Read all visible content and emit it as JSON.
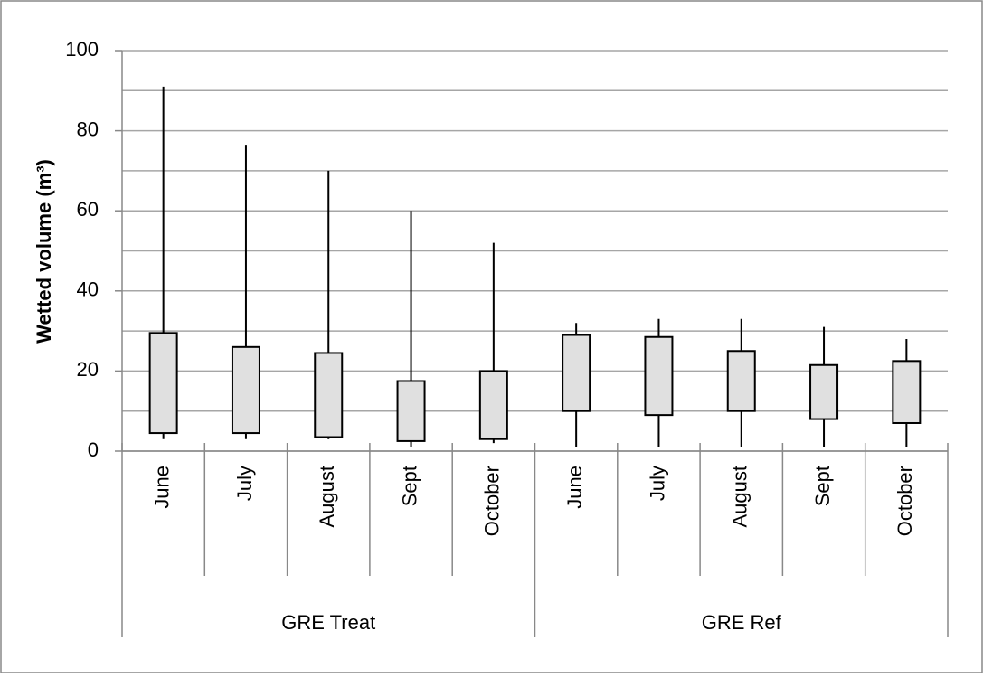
{
  "chart_data": {
    "type": "box",
    "y_label": "Wetted volume (m³)",
    "ylim": [
      0,
      100
    ],
    "yticks": [
      0,
      20,
      40,
      60,
      80,
      100
    ],
    "minor_grid": [
      10,
      30,
      50,
      70,
      90
    ],
    "grid": true,
    "color": "#e0e0e0",
    "groups": [
      {
        "name": "GRE Treat",
        "categories": [
          "June",
          "July",
          "August",
          "Sept",
          "October"
        ],
        "low": [
          3,
          3,
          3,
          1,
          2
        ],
        "q1": [
          4.5,
          4.5,
          3.5,
          2.5,
          3
        ],
        "q3": [
          29.5,
          26,
          24.5,
          17.5,
          20
        ],
        "high": [
          91,
          76.5,
          70,
          60,
          52
        ]
      },
      {
        "name": "GRE Ref",
        "categories": [
          "June",
          "July",
          "August",
          "Sept",
          "October"
        ],
        "low": [
          1,
          1,
          1,
          1,
          1
        ],
        "q1": [
          10,
          9,
          10,
          8,
          7
        ],
        "q3": [
          29,
          28.5,
          25,
          21.5,
          22.5
        ],
        "high": [
          32,
          33,
          33,
          31,
          28
        ]
      }
    ]
  }
}
